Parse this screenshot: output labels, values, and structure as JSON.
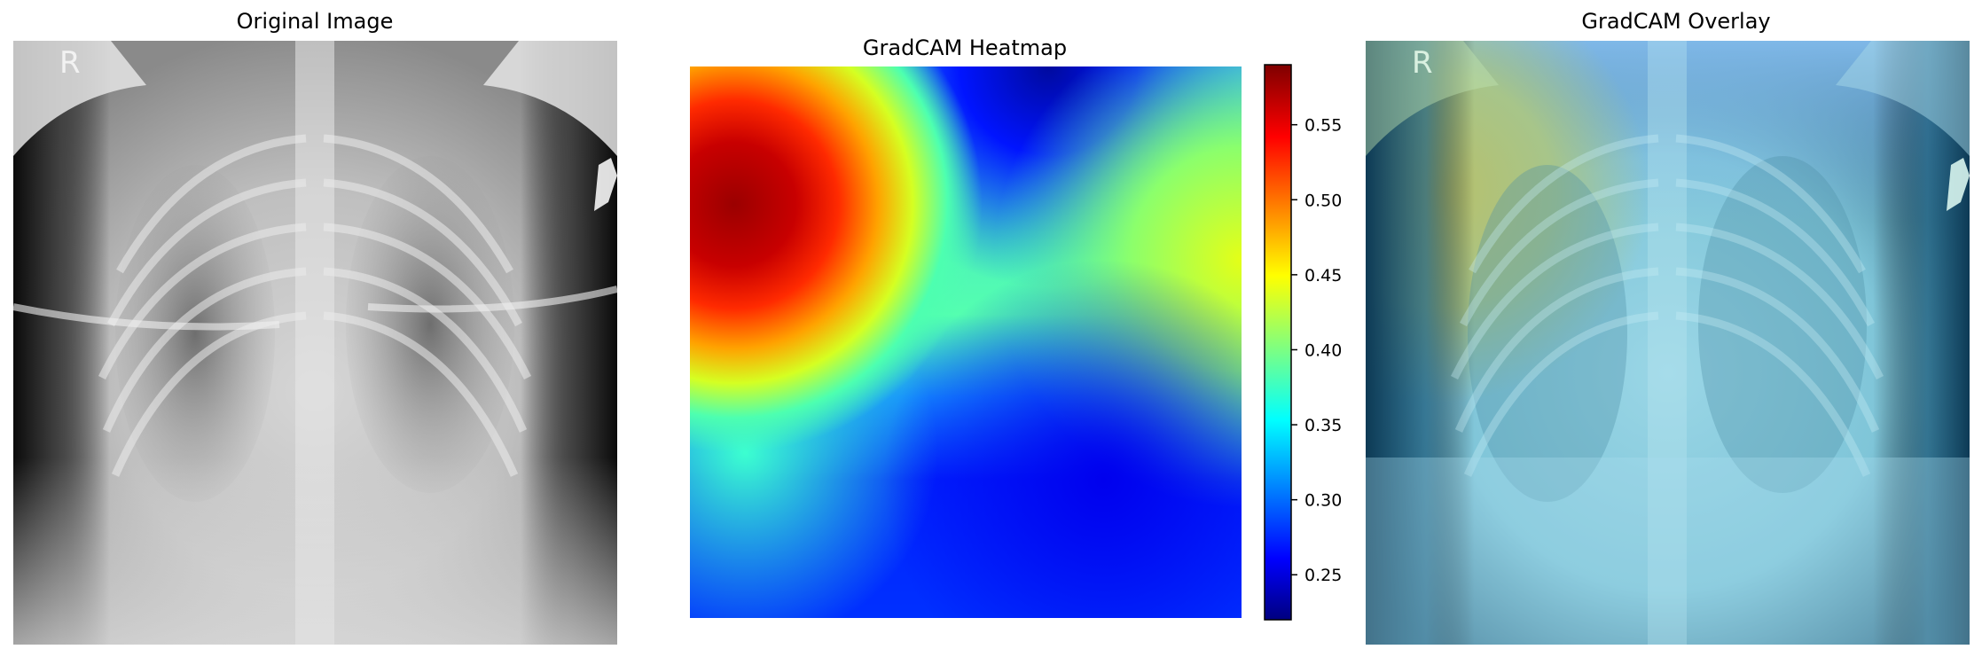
{
  "panels": {
    "original": {
      "title": "Original Image",
      "marker": "R"
    },
    "heatmap": {
      "title": "GradCAM Heatmap"
    },
    "overlay": {
      "title": "GradCAM Overlay",
      "marker": "R"
    }
  },
  "colorbar": {
    "colormap": "jet",
    "range": [
      0.22,
      0.59
    ],
    "ticks": [
      "0.25",
      "0.30",
      "0.35",
      "0.40",
      "0.45",
      "0.50",
      "0.55"
    ]
  }
}
